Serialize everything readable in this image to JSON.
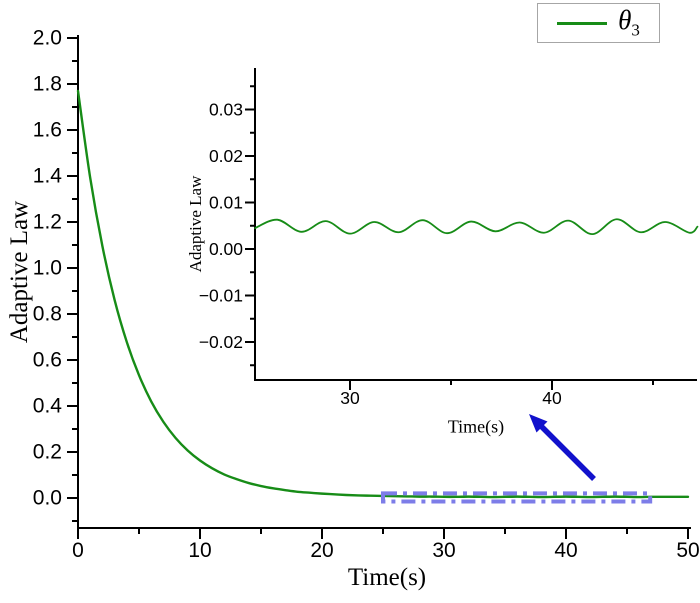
{
  "legend": {
    "symbol": "θ",
    "subscript": "3",
    "series_color": "#178c17"
  },
  "annotation": {
    "zoom_box_color": "#7d7de8",
    "arrow_color": "#1212cc"
  },
  "chart_data": [
    {
      "type": "line",
      "role": "main",
      "title": "",
      "xlabel": "Time(s)",
      "ylabel": "Adaptive Law",
      "xlim": [
        0,
        50
      ],
      "ylim": [
        -0.13,
        2.0
      ],
      "grid": false,
      "legend_entries": [
        "θ3"
      ],
      "legend_position": "top-right-outside",
      "x_ticks": {
        "values": [
          0,
          10,
          20,
          30,
          40,
          50
        ],
        "labels": [
          "0",
          "10",
          "20",
          "30",
          "40",
          "50"
        ],
        "minor": [
          5,
          15,
          25,
          35,
          45
        ]
      },
      "y_ticks": {
        "values": [
          0,
          0.2,
          0.4,
          0.6,
          0.8,
          1.0,
          1.2,
          1.4,
          1.6,
          1.8,
          2.0
        ],
        "labels": [
          "0.0",
          "0.2",
          "0.4",
          "0.6",
          "0.8",
          "1.0",
          "1.2",
          "1.4",
          "1.6",
          "1.8",
          "2.0"
        ],
        "minor": [
          -0.1,
          0.1,
          0.3,
          0.5,
          0.7,
          0.9,
          1.1,
          1.3,
          1.5,
          1.7,
          1.9
        ]
      },
      "series": [
        {
          "name": "θ3",
          "color": "#178c17",
          "points": [
            [
              0,
              1.77
            ],
            [
              1,
              1.392
            ],
            [
              2,
              1.095
            ],
            [
              3,
              0.861
            ],
            [
              4,
              0.678
            ],
            [
              5,
              0.534
            ],
            [
              6,
              0.42
            ],
            [
              7,
              0.331
            ],
            [
              8,
              0.261
            ],
            [
              9,
              0.206
            ],
            [
              10,
              0.163
            ],
            [
              11,
              0.129
            ],
            [
              12,
              0.102
            ],
            [
              13,
              0.082
            ],
            [
              14,
              0.065
            ],
            [
              15,
              0.052
            ],
            [
              16,
              0.042
            ],
            [
              17,
              0.034
            ],
            [
              18,
              0.027
            ],
            [
              19,
              0.023
            ],
            [
              20,
              0.019
            ],
            [
              21,
              0.016
            ],
            [
              22,
              0.013
            ],
            [
              23,
              0.011
            ],
            [
              24,
              0.01
            ],
            [
              25,
              0.009
            ],
            [
              26,
              0.008
            ],
            [
              27,
              0.007
            ],
            [
              28,
              0.006
            ],
            [
              29,
              0.006
            ],
            [
              30,
              0.005
            ],
            [
              31,
              0.005
            ],
            [
              32,
              0.006
            ],
            [
              33,
              0.005
            ],
            [
              34,
              0.004
            ],
            [
              35,
              0.005
            ],
            [
              36,
              0.006
            ],
            [
              37,
              0.005
            ],
            [
              38,
              0.004
            ],
            [
              39,
              0.005
            ],
            [
              40,
              0.006
            ],
            [
              41,
              0.005
            ],
            [
              42,
              0.004
            ],
            [
              43,
              0.005
            ],
            [
              44,
              0.006
            ],
            [
              45,
              0.005
            ],
            [
              46,
              0.004
            ],
            [
              47,
              0.005
            ],
            [
              48,
              0.005
            ],
            [
              49,
              0.005
            ],
            [
              50,
              0.005
            ]
          ]
        }
      ],
      "zoom_region": {
        "x1": 25.0,
        "x2": 46.9,
        "y1": -0.015,
        "y2": 0.02
      }
    },
    {
      "type": "line",
      "role": "inset",
      "title": "",
      "xlabel": "Time(s)",
      "ylabel": "Adaptive Law",
      "xlim": [
        25.3,
        47.2
      ],
      "ylim": [
        -0.028,
        0.039
      ],
      "grid": false,
      "x_ticks": {
        "values": [
          30,
          40
        ],
        "labels": [
          "30",
          "40"
        ],
        "minor": [
          35,
          45
        ]
      },
      "y_ticks": {
        "values": [
          -0.02,
          -0.01,
          0,
          0.01,
          0.02,
          0.03
        ],
        "labels": [
          "−0.02",
          "−0.01",
          "0.00",
          "0.01",
          "0.02",
          "0.03"
        ],
        "minor": [
          -0.025,
          -0.015,
          -0.005,
          0.005,
          0.015,
          0.025,
          0.035
        ]
      },
      "series": [
        {
          "name": "θ3",
          "color": "#178c17",
          "points": [
            [
              25.3,
              0.0045
            ],
            [
              26.4,
              0.0063
            ],
            [
              27.6,
              0.0037
            ],
            [
              28.8,
              0.006
            ],
            [
              30.0,
              0.0033
            ],
            [
              31.2,
              0.0058
            ],
            [
              32.4,
              0.0036
            ],
            [
              33.6,
              0.0062
            ],
            [
              34.8,
              0.0034
            ],
            [
              36.0,
              0.0059
            ],
            [
              37.2,
              0.0038
            ],
            [
              38.4,
              0.0057
            ],
            [
              39.6,
              0.0035
            ],
            [
              40.8,
              0.0061
            ],
            [
              42.0,
              0.0032
            ],
            [
              43.2,
              0.0064
            ],
            [
              44.4,
              0.0036
            ],
            [
              45.6,
              0.0058
            ],
            [
              46.8,
              0.0035
            ],
            [
              47.2,
              0.0048
            ]
          ]
        }
      ]
    }
  ]
}
